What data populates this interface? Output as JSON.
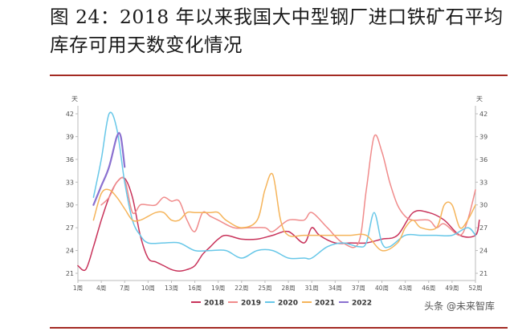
{
  "title": "图 24：2018 年以来我国大中型钢厂进口铁矿石平均库存可用天数变化情况",
  "watermark": "头条 @未来智库",
  "chart_data": {
    "type": "line",
    "title": "",
    "ylabel_left": "天",
    "ylabel_right": "天",
    "ylim": [
      21,
      42
    ],
    "yticks": [
      21,
      24,
      27,
      30,
      33,
      36,
      39,
      42
    ],
    "xlim": [
      1,
      52
    ],
    "xticks": [
      1,
      4,
      7,
      10,
      13,
      16,
      19,
      22,
      25,
      28,
      31,
      34,
      37,
      40,
      43,
      46,
      49,
      52
    ],
    "xtick_labels": [
      "1周",
      "4周",
      "7周",
      "10周",
      "13周",
      "16周",
      "19周",
      "22周",
      "25周",
      "28周",
      "31周",
      "34周",
      "37周",
      "40周",
      "43周",
      "46周",
      "49周",
      "52周"
    ],
    "grid": false,
    "legend": "bottom",
    "series": [
      {
        "name": "2018",
        "color": "#c8325a",
        "points": [
          [
            1,
            22
          ],
          [
            2,
            21.5
          ],
          [
            3,
            24.5
          ],
          [
            4,
            28
          ],
          [
            5,
            31
          ],
          [
            6,
            33
          ],
          [
            7,
            33.5
          ],
          [
            8,
            31
          ],
          [
            9,
            26
          ],
          [
            10,
            23
          ],
          [
            11,
            22.5
          ],
          [
            12,
            22
          ],
          [
            13,
            21.5
          ],
          [
            14,
            21.3
          ],
          [
            15,
            21.5
          ],
          [
            16,
            22
          ],
          [
            17,
            23.5
          ],
          [
            18,
            24.5
          ],
          [
            19,
            25.5
          ],
          [
            20,
            26
          ],
          [
            22,
            25.5
          ],
          [
            24,
            25.5
          ],
          [
            26,
            26
          ],
          [
            28,
            26.5
          ],
          [
            30,
            25
          ],
          [
            31,
            27
          ],
          [
            32,
            26
          ],
          [
            34,
            25
          ],
          [
            36,
            25
          ],
          [
            38,
            25
          ],
          [
            40,
            25.5
          ],
          [
            42,
            26
          ],
          [
            44,
            29
          ],
          [
            46,
            29
          ],
          [
            48,
            28
          ],
          [
            50,
            26
          ],
          [
            52,
            26
          ],
          [
            52.5,
            28
          ]
        ]
      },
      {
        "name": "2019",
        "color": "#f08b8b",
        "points": [
          [
            4,
            30
          ],
          [
            5,
            31
          ],
          [
            6,
            33
          ],
          [
            7,
            33.3
          ],
          [
            8,
            29
          ],
          [
            9,
            30
          ],
          [
            10,
            30
          ],
          [
            11,
            30
          ],
          [
            12,
            31
          ],
          [
            13,
            30.5
          ],
          [
            14,
            30.5
          ],
          [
            15,
            28
          ],
          [
            16,
            26.5
          ],
          [
            17,
            29
          ],
          [
            18,
            28.5
          ],
          [
            19,
            28
          ],
          [
            21,
            27
          ],
          [
            23,
            27
          ],
          [
            25,
            27
          ],
          [
            26,
            26.5
          ],
          [
            28,
            28
          ],
          [
            30,
            28
          ],
          [
            31,
            29
          ],
          [
            33,
            27
          ],
          [
            35,
            25
          ],
          [
            37,
            25
          ],
          [
            38,
            32
          ],
          [
            39,
            39
          ],
          [
            40,
            37
          ],
          [
            41,
            33
          ],
          [
            42,
            30
          ],
          [
            43,
            28.5
          ],
          [
            44,
            28
          ],
          [
            46,
            28
          ],
          [
            47,
            27
          ],
          [
            48,
            27.5
          ],
          [
            50,
            26
          ],
          [
            51,
            28
          ],
          [
            52,
            32
          ]
        ]
      },
      {
        "name": "2020",
        "color": "#67c7e8",
        "points": [
          [
            3,
            31
          ],
          [
            4,
            36
          ],
          [
            5,
            42
          ],
          [
            6,
            40
          ],
          [
            7,
            33
          ],
          [
            8,
            28
          ],
          [
            9,
            26
          ],
          [
            10,
            25
          ],
          [
            12,
            25
          ],
          [
            14,
            25
          ],
          [
            16,
            24
          ],
          [
            18,
            24
          ],
          [
            20,
            24
          ],
          [
            22,
            23
          ],
          [
            24,
            24
          ],
          [
            26,
            24
          ],
          [
            28,
            23
          ],
          [
            30,
            23
          ],
          [
            31,
            23
          ],
          [
            33,
            24.5
          ],
          [
            35,
            25
          ],
          [
            37,
            24.5
          ],
          [
            38,
            25
          ],
          [
            39,
            29
          ],
          [
            40,
            25
          ],
          [
            41,
            24.5
          ],
          [
            43,
            26
          ],
          [
            45,
            26
          ],
          [
            47,
            26
          ],
          [
            49,
            26
          ],
          [
            51,
            27
          ],
          [
            52,
            26
          ]
        ]
      },
      {
        "name": "2021",
        "color": "#f5b45a",
        "points": [
          [
            3,
            28
          ],
          [
            4,
            31.5
          ],
          [
            5,
            32
          ],
          [
            6,
            31
          ],
          [
            7,
            29.5
          ],
          [
            8,
            28
          ],
          [
            9,
            28
          ],
          [
            10,
            28.5
          ],
          [
            11,
            29
          ],
          [
            12,
            29
          ],
          [
            13,
            28
          ],
          [
            14,
            28
          ],
          [
            15,
            29
          ],
          [
            16,
            29
          ],
          [
            17,
            29
          ],
          [
            18,
            29
          ],
          [
            19,
            29
          ],
          [
            20,
            28
          ],
          [
            22,
            27
          ],
          [
            24,
            28
          ],
          [
            25,
            32
          ],
          [
            26,
            34
          ],
          [
            27,
            28
          ],
          [
            28,
            26
          ],
          [
            30,
            26
          ],
          [
            32,
            26
          ],
          [
            34,
            26
          ],
          [
            36,
            26
          ],
          [
            38,
            26
          ],
          [
            40,
            24
          ],
          [
            42,
            25
          ],
          [
            43,
            27
          ],
          [
            44,
            28
          ],
          [
            45,
            27
          ],
          [
            47,
            27
          ],
          [
            48,
            30
          ],
          [
            49,
            30
          ],
          [
            50,
            27
          ],
          [
            51,
            28
          ],
          [
            52,
            30
          ]
        ]
      },
      {
        "name": "2022",
        "color": "#8a70d0",
        "points": [
          [
            3,
            30
          ],
          [
            4,
            32.5
          ],
          [
            5,
            35
          ],
          [
            6,
            39
          ],
          [
            6.5,
            39
          ],
          [
            7,
            35
          ]
        ]
      }
    ]
  }
}
